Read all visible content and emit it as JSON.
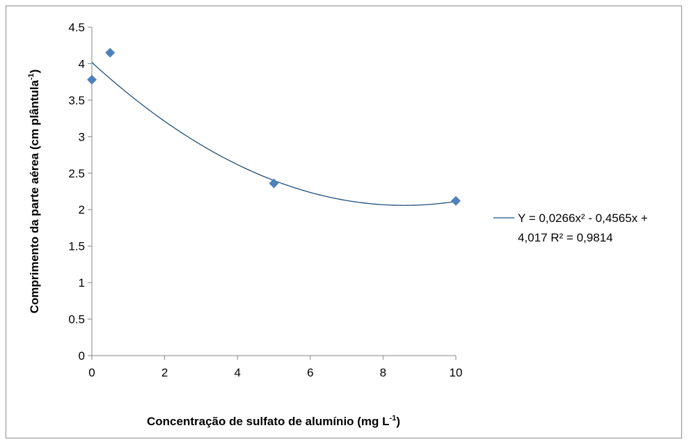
{
  "chart_data": {
    "type": "scatter",
    "x": [
      0,
      0.5,
      5,
      10
    ],
    "y": [
      3.78,
      4.15,
      2.36,
      2.12
    ],
    "xlim": [
      0,
      10
    ],
    "ylim": [
      0,
      4.5
    ],
    "xticks": [
      "0",
      "2",
      "4",
      "6",
      "8",
      "10"
    ],
    "xtick_values": [
      0,
      2,
      4,
      6,
      8,
      10
    ],
    "yticks": [
      "0",
      "0.5",
      "1",
      "1.5",
      "2",
      "2.5",
      "3",
      "3.5",
      "4",
      "4.5"
    ],
    "ytick_values": [
      0,
      0.5,
      1,
      1.5,
      2,
      2.5,
      3,
      3.5,
      4,
      4.5
    ],
    "xlabel_main": "Concentração de sulfato de alumínio (mg L",
    "xlabel_sup": "-1",
    "xlabel_end": ")",
    "ylabel_main": "Comprimento da parte aérea (cm plântula",
    "ylabel_sup": "-1",
    "ylabel_end": ")",
    "trendline": {
      "type": "polynomial",
      "coefficients": {
        "a": 0.0266,
        "b": -0.4565,
        "c": 4.017
      },
      "legend_line1": "Y = 0,0266x² - 0,4565x +",
      "legend_line2": "4,017 R² = 0,9814"
    },
    "grid": false,
    "legend_position": "right",
    "colors": {
      "marker": "#4f81bd",
      "line": "#1f4e79",
      "axis": "#868686"
    }
  }
}
